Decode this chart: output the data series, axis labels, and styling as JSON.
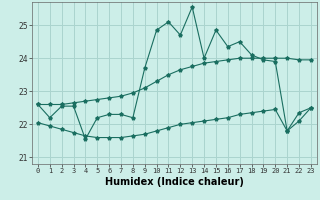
{
  "xlabel": "Humidex (Indice chaleur)",
  "bg_color": "#cceee8",
  "grid_color": "#aad4ce",
  "line_color": "#1a6e60",
  "xlim": [
    -0.5,
    23.5
  ],
  "ylim": [
    20.8,
    25.7
  ],
  "yticks": [
    21,
    22,
    23,
    24,
    25
  ],
  "xticks": [
    0,
    1,
    2,
    3,
    4,
    5,
    6,
    7,
    8,
    9,
    10,
    11,
    12,
    13,
    14,
    15,
    16,
    17,
    18,
    19,
    20,
    21,
    22,
    23
  ],
  "x": [
    0,
    1,
    2,
    3,
    4,
    5,
    6,
    7,
    8,
    9,
    10,
    11,
    12,
    13,
    14,
    15,
    16,
    17,
    18,
    19,
    20,
    21,
    22,
    23
  ],
  "y_zigzag": [
    22.6,
    22.2,
    22.55,
    22.55,
    21.55,
    22.2,
    22.3,
    22.3,
    22.2,
    23.7,
    24.85,
    25.1,
    24.7,
    25.55,
    24.0,
    24.85,
    24.35,
    24.5,
    24.1,
    23.95,
    23.9,
    21.8,
    22.35,
    22.5
  ],
  "y_upper": [
    22.6,
    22.6,
    22.6,
    22.65,
    22.7,
    22.75,
    22.8,
    22.85,
    22.95,
    23.1,
    23.3,
    23.5,
    23.65,
    23.75,
    23.85,
    23.9,
    23.95,
    24.0,
    24.0,
    24.0,
    24.0,
    24.0,
    23.95,
    23.95
  ],
  "y_lower": [
    22.05,
    21.95,
    21.85,
    21.75,
    21.65,
    21.6,
    21.6,
    21.6,
    21.65,
    21.7,
    21.8,
    21.9,
    22.0,
    22.05,
    22.1,
    22.15,
    22.2,
    22.3,
    22.35,
    22.4,
    22.45,
    21.8,
    22.1,
    22.5
  ]
}
